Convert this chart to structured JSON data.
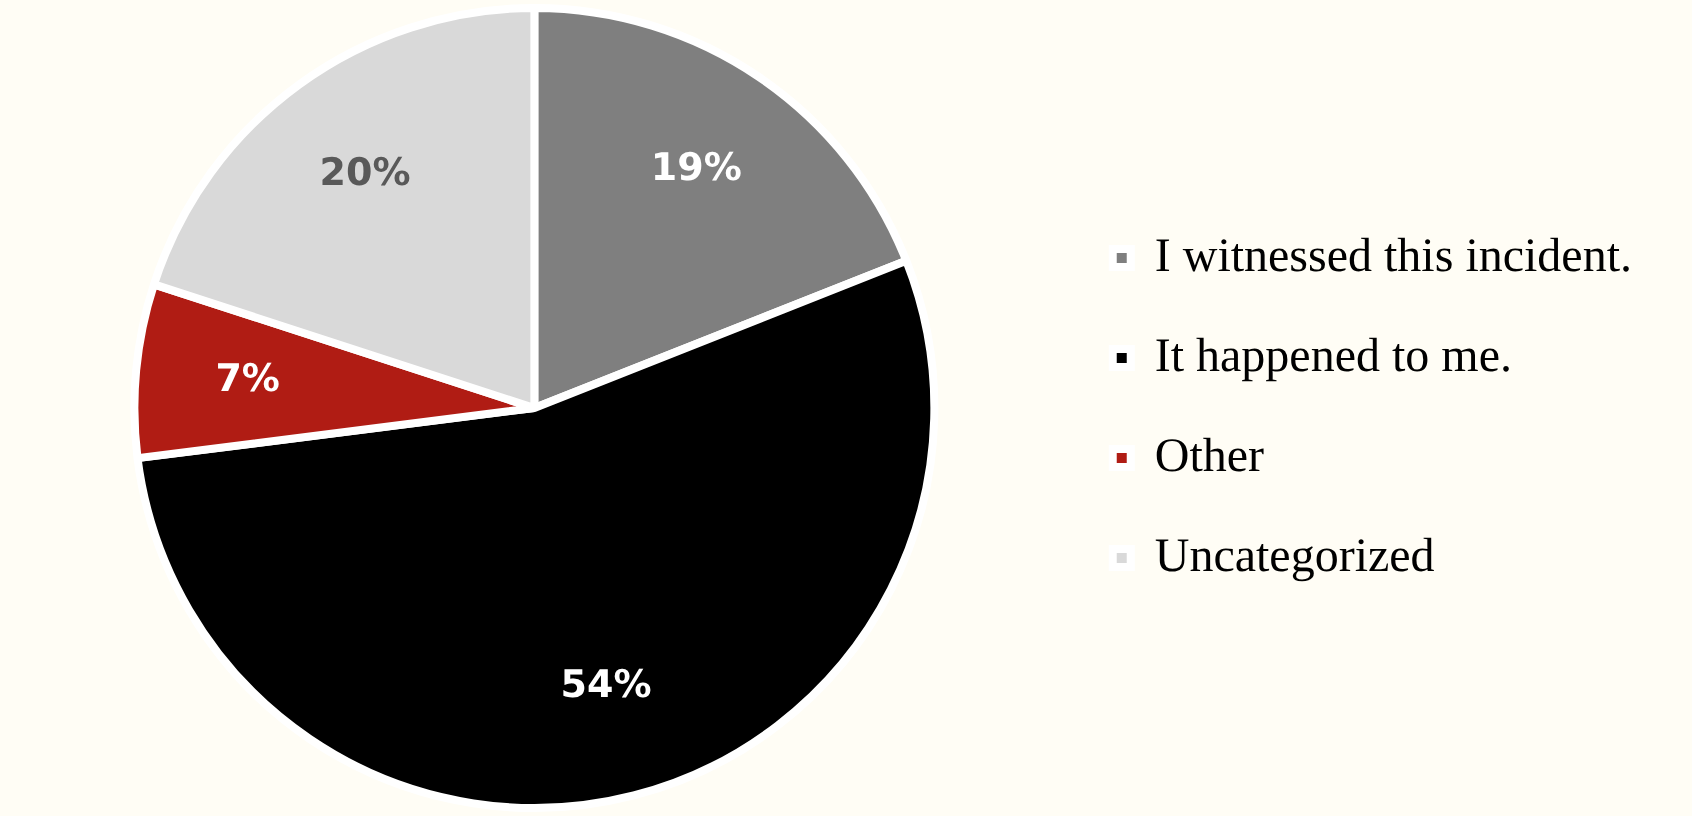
{
  "chart_data": {
    "type": "pie",
    "categories": [
      "I witnessed this incident.",
      "It happened to me.",
      "Other",
      "Uncategorized"
    ],
    "values": [
      19,
      54,
      7,
      20
    ],
    "colors": [
      "#7f7f7f",
      "#000000",
      "#b01c14",
      "#d9d9d9"
    ],
    "value_labels": [
      "19%",
      "54%",
      "7%",
      "20%"
    ],
    "legend": "right"
  }
}
